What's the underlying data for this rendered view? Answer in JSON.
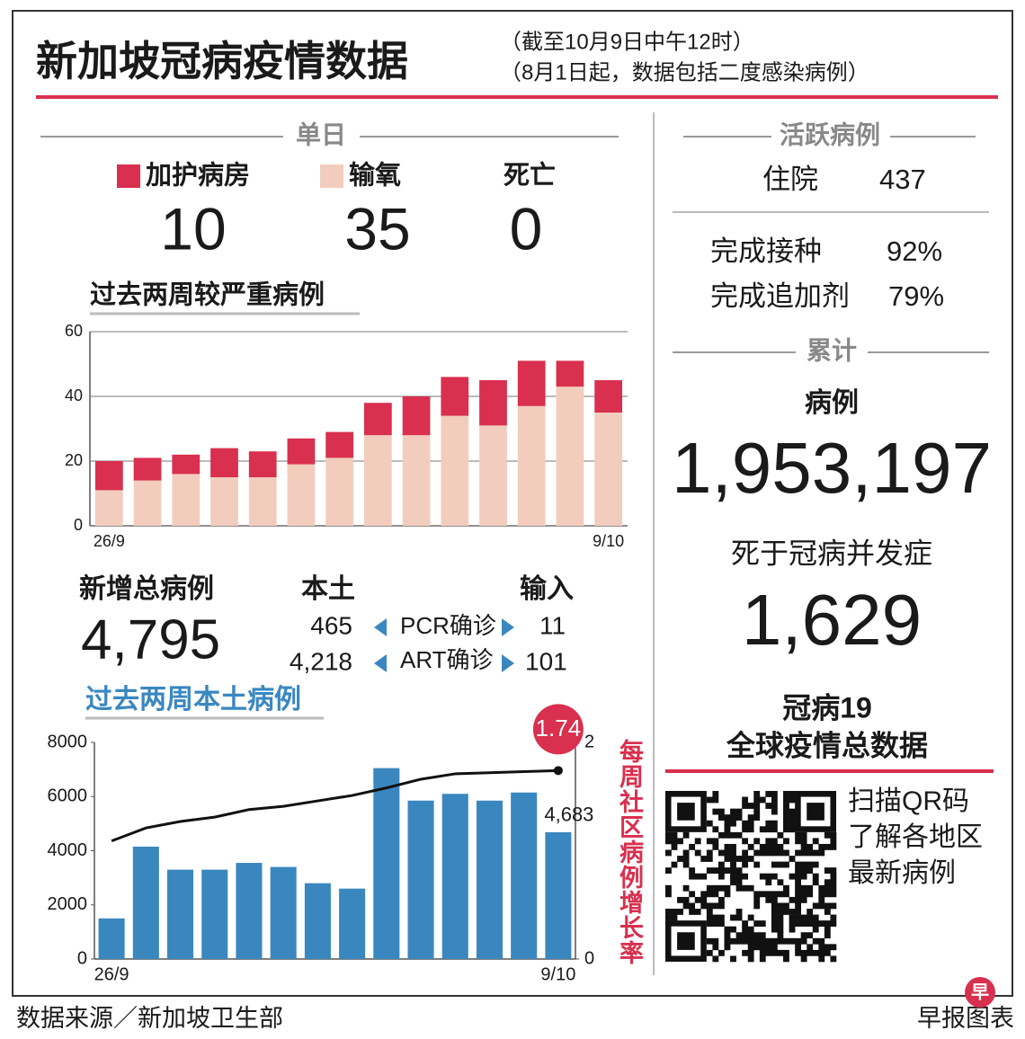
{
  "header": {
    "title": "新加坡冠病疫情数据",
    "note1": "（截至10月9日中午12时）",
    "note2": "（8月1日起，数据包括二度感染病例）"
  },
  "daily": {
    "heading": "单日",
    "death_label": "死亡",
    "values": [
      "10",
      "35",
      "0"
    ]
  },
  "cases": {
    "label": "新增总病例",
    "total": "4,795",
    "local_label": "本土",
    "import_label": "输入",
    "rows": [
      {
        "local": "465",
        "type": "PCR确诊",
        "import": "11"
      },
      {
        "local": "4,218",
        "type": "ART确诊",
        "import": "101"
      }
    ]
  },
  "active": {
    "heading": "活跃病例",
    "rows": [
      [
        "住院",
        "437"
      ],
      [
        "完成接种",
        "92%"
      ],
      [
        "完成追加剂",
        "79%"
      ]
    ]
  },
  "cumulative": {
    "heading": "累计",
    "cases_label": "病例",
    "cases": "1,953,197",
    "deaths_label": "死于冠病并发症",
    "deaths": "1,629"
  },
  "global": {
    "title1": "冠病19",
    "title2": "全球疫情总数据",
    "qr_text": [
      "扫描QR码",
      "了解各地区",
      "最新病例"
    ]
  },
  "footer": {
    "source": "数据来源／新加坡卫生部",
    "credit": "早报图表",
    "logo": "早"
  },
  "chart_data": [
    {
      "type": "bar",
      "stacked": true,
      "title": "过去两周较严重病例",
      "categories": [
        "26/9",
        null,
        null,
        null,
        null,
        null,
        null,
        null,
        null,
        null,
        null,
        null,
        null,
        "9/10"
      ],
      "series": [
        {
          "name": "输氧",
          "color": "#f2cdbd",
          "values": [
            11,
            14,
            16,
            15,
            15,
            19,
            21,
            28,
            28,
            34,
            31,
            37,
            43,
            35
          ]
        },
        {
          "name": "加护病房",
          "color": "#d8304e",
          "values": [
            9,
            7,
            6,
            9,
            8,
            8,
            8,
            10,
            12,
            12,
            14,
            14,
            8,
            10
          ]
        }
      ],
      "ylim": [
        0,
        60
      ],
      "yticks": [
        0,
        20,
        40,
        60
      ],
      "grid": true
    },
    {
      "type": "bar",
      "title": "过去两周本土病例",
      "categories": [
        "26/9",
        null,
        null,
        null,
        null,
        null,
        null,
        null,
        null,
        null,
        null,
        null,
        null,
        "9/10"
      ],
      "series": [
        {
          "type": "bar",
          "color": "#3a87c0",
          "values": [
            1500,
            4150,
            3300,
            3300,
            3550,
            3400,
            2800,
            2600,
            7050,
            5850,
            6100,
            5850,
            6150,
            4683
          ],
          "value_labels": [
            null,
            null,
            null,
            null,
            null,
            null,
            null,
            null,
            null,
            null,
            null,
            null,
            null,
            "4,683"
          ]
        },
        {
          "type": "line",
          "axis": "y2",
          "color": "#111111",
          "values": [
            1.09,
            1.21,
            1.27,
            1.31,
            1.38,
            1.41,
            1.46,
            1.51,
            1.58,
            1.66,
            1.71,
            1.72,
            1.73,
            1.74
          ],
          "value_labels": [
            null,
            null,
            null,
            null,
            null,
            null,
            null,
            null,
            null,
            null,
            null,
            null,
            null,
            "1.74"
          ]
        }
      ],
      "ylim": [
        0,
        8000
      ],
      "yticks": [
        0,
        2000,
        4000,
        6000,
        8000
      ],
      "y2lim": [
        0,
        2
      ],
      "y2ticks": [
        0,
        2
      ],
      "y2label": "每周社区病例增长率",
      "grid": false
    }
  ]
}
